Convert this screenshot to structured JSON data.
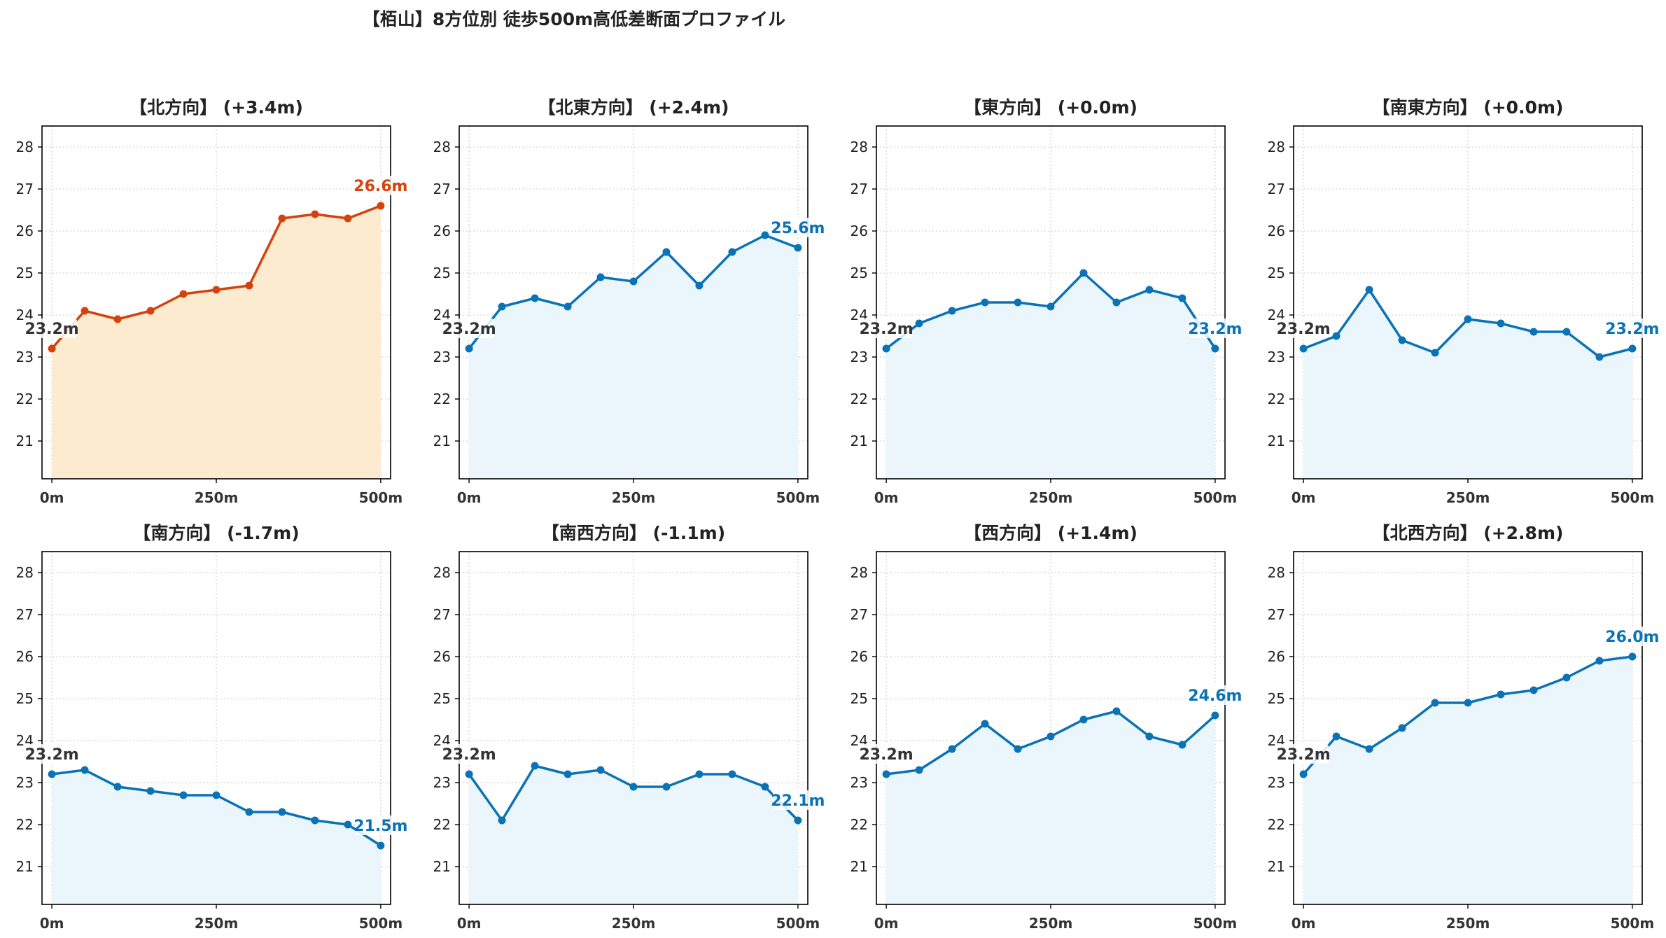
{
  "title": "【栢山】8方位別 徒歩500m高低差断面プロファイル",
  "colors": {
    "north_line": "#D4420E",
    "north_fill": "#FDEBD0",
    "other_line": "#0A72B5",
    "other_fill": "#EAF6FB",
    "grid": "#C8C8C8",
    "start_label": "#333333"
  },
  "chart_data": [
    {
      "type": "area",
      "title": "【北方向】 (+3.4m)",
      "x": [
        0,
        50,
        100,
        150,
        200,
        250,
        300,
        350,
        400,
        450,
        500
      ],
      "values": [
        23.2,
        24.1,
        23.9,
        24.1,
        24.5,
        24.6,
        24.7,
        26.3,
        26.4,
        26.3,
        26.6
      ],
      "start_label": "23.2m",
      "end_label": "26.6m",
      "highlight": true,
      "xticks": [
        "0m",
        "250m",
        "500m"
      ],
      "yticks": [
        21,
        22,
        23,
        24,
        25,
        26,
        27,
        28
      ],
      "ylim": [
        20.1,
        28.5
      ],
      "xlim": [
        -15,
        515
      ],
      "grid": true
    },
    {
      "type": "area",
      "title": "【北東方向】 (+2.4m)",
      "x": [
        0,
        50,
        100,
        150,
        200,
        250,
        300,
        350,
        400,
        450,
        500
      ],
      "values": [
        23.2,
        24.2,
        24.4,
        24.2,
        24.9,
        24.8,
        25.5,
        24.7,
        25.5,
        25.9,
        25.6
      ],
      "start_label": "23.2m",
      "end_label": "25.6m",
      "highlight": false,
      "xticks": [
        "0m",
        "250m",
        "500m"
      ],
      "yticks": [
        21,
        22,
        23,
        24,
        25,
        26,
        27,
        28
      ],
      "ylim": [
        20.1,
        28.5
      ],
      "xlim": [
        -15,
        515
      ],
      "grid": true
    },
    {
      "type": "area",
      "title": "【東方向】 (+0.0m)",
      "x": [
        0,
        50,
        100,
        150,
        200,
        250,
        300,
        350,
        400,
        450,
        500
      ],
      "values": [
        23.2,
        23.8,
        24.1,
        24.3,
        24.3,
        24.2,
        25.0,
        24.3,
        24.6,
        24.4,
        23.2
      ],
      "start_label": "23.2m",
      "end_label": "23.2m",
      "highlight": false,
      "xticks": [
        "0m",
        "250m",
        "500m"
      ],
      "yticks": [
        21,
        22,
        23,
        24,
        25,
        26,
        27,
        28
      ],
      "ylim": [
        20.1,
        28.5
      ],
      "xlim": [
        -15,
        515
      ],
      "grid": true
    },
    {
      "type": "area",
      "title": "【南東方向】 (+0.0m)",
      "x": [
        0,
        50,
        100,
        150,
        200,
        250,
        300,
        350,
        400,
        450,
        500
      ],
      "values": [
        23.2,
        23.5,
        24.6,
        23.4,
        23.1,
        23.9,
        23.8,
        23.6,
        23.6,
        23.0,
        23.2
      ],
      "start_label": "23.2m",
      "end_label": "23.2m",
      "highlight": false,
      "xticks": [
        "0m",
        "250m",
        "500m"
      ],
      "yticks": [
        21,
        22,
        23,
        24,
        25,
        26,
        27,
        28
      ],
      "ylim": [
        20.1,
        28.5
      ],
      "xlim": [
        -15,
        515
      ],
      "grid": true
    },
    {
      "type": "area",
      "title": "【南方向】 (-1.7m)",
      "x": [
        0,
        50,
        100,
        150,
        200,
        250,
        300,
        350,
        400,
        450,
        500
      ],
      "values": [
        23.2,
        23.3,
        22.9,
        22.8,
        22.7,
        22.7,
        22.3,
        22.3,
        22.1,
        22.0,
        21.5
      ],
      "start_label": "23.2m",
      "end_label": "21.5m",
      "highlight": false,
      "xticks": [
        "0m",
        "250m",
        "500m"
      ],
      "yticks": [
        21,
        22,
        23,
        24,
        25,
        26,
        27,
        28
      ],
      "ylim": [
        20.1,
        28.5
      ],
      "xlim": [
        -15,
        515
      ],
      "grid": true
    },
    {
      "type": "area",
      "title": "【南西方向】 (-1.1m)",
      "x": [
        0,
        50,
        100,
        150,
        200,
        250,
        300,
        350,
        400,
        450,
        500
      ],
      "values": [
        23.2,
        22.1,
        23.4,
        23.2,
        23.3,
        22.9,
        22.9,
        23.2,
        23.2,
        22.9,
        22.1
      ],
      "start_label": "23.2m",
      "end_label": "22.1m",
      "highlight": false,
      "xticks": [
        "0m",
        "250m",
        "500m"
      ],
      "yticks": [
        21,
        22,
        23,
        24,
        25,
        26,
        27,
        28
      ],
      "ylim": [
        20.1,
        28.5
      ],
      "xlim": [
        -15,
        515
      ],
      "grid": true
    },
    {
      "type": "area",
      "title": "【西方向】 (+1.4m)",
      "x": [
        0,
        50,
        100,
        150,
        200,
        250,
        300,
        350,
        400,
        450,
        500
      ],
      "values": [
        23.2,
        23.3,
        23.8,
        24.4,
        23.8,
        24.1,
        24.5,
        24.7,
        24.1,
        23.9,
        24.6
      ],
      "start_label": "23.2m",
      "end_label": "24.6m",
      "highlight": false,
      "xticks": [
        "0m",
        "250m",
        "500m"
      ],
      "yticks": [
        21,
        22,
        23,
        24,
        25,
        26,
        27,
        28
      ],
      "ylim": [
        20.1,
        28.5
      ],
      "xlim": [
        -15,
        515
      ],
      "grid": true
    },
    {
      "type": "area",
      "title": "【北西方向】 (+2.8m)",
      "x": [
        0,
        50,
        100,
        150,
        200,
        250,
        300,
        350,
        400,
        450,
        500
      ],
      "values": [
        23.2,
        24.1,
        23.8,
        24.3,
        24.9,
        24.9,
        25.1,
        25.2,
        25.5,
        25.9,
        26.0
      ],
      "start_label": "23.2m",
      "end_label": "26.0m",
      "highlight": false,
      "xticks": [
        "0m",
        "250m",
        "500m"
      ],
      "yticks": [
        21,
        22,
        23,
        24,
        25,
        26,
        27,
        28
      ],
      "ylim": [
        20.1,
        28.5
      ],
      "xlim": [
        -15,
        515
      ],
      "grid": true
    }
  ]
}
